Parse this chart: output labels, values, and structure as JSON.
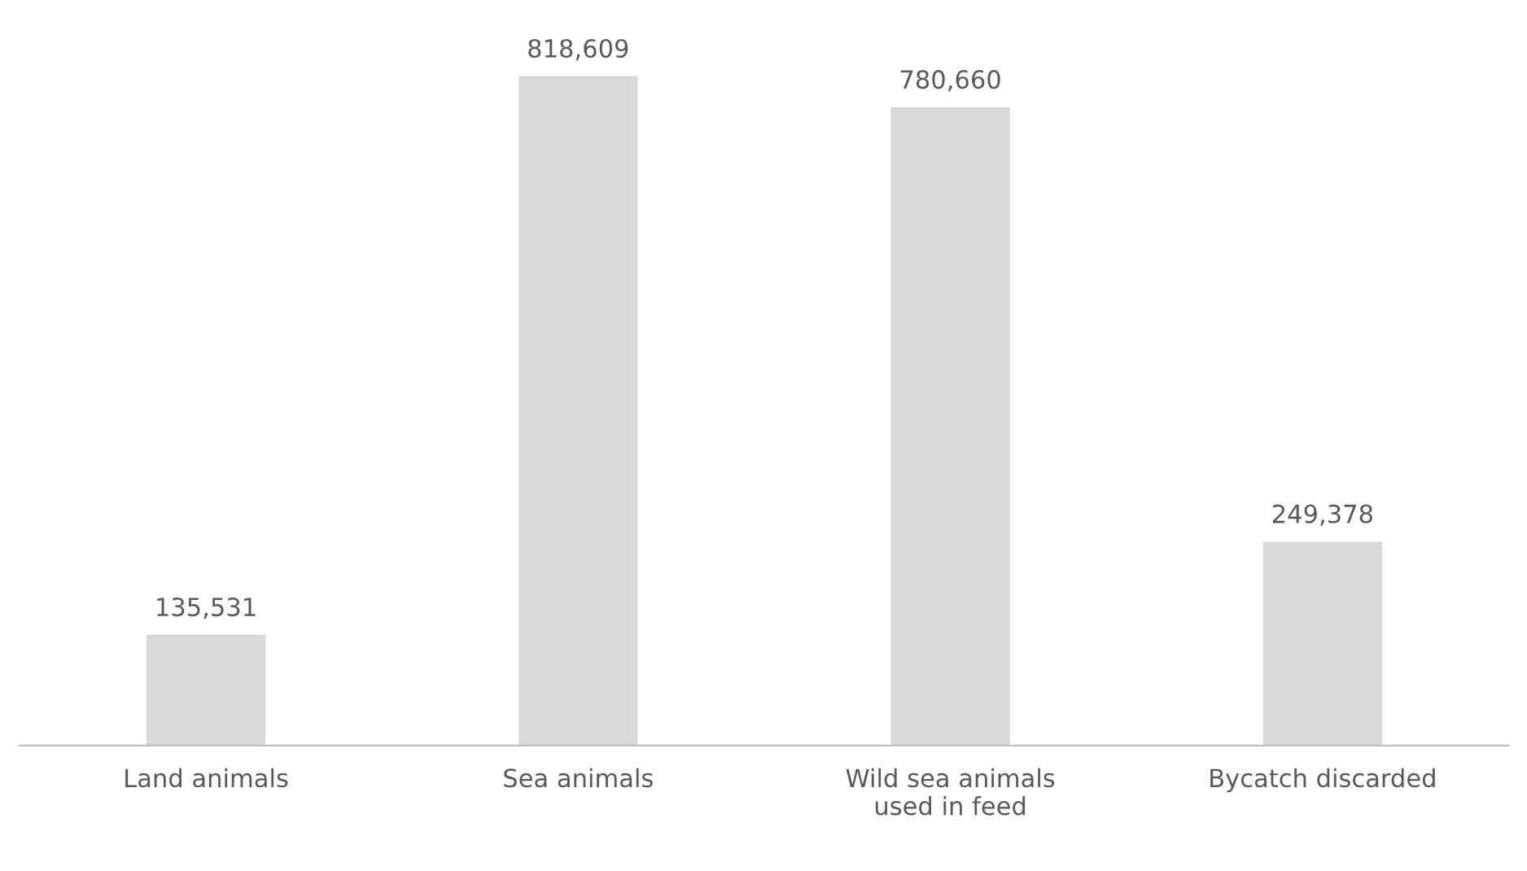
{
  "chart_data": {
    "type": "bar",
    "categories": [
      "Land animals",
      "Sea animals",
      "Wild sea animals\nused in feed",
      "Bycatch discarded"
    ],
    "values": [
      135531,
      818609,
      780660,
      249378
    ],
    "color": "#d9d9d9",
    "value_labels": [
      "135,531",
      "818,609",
      "780,660",
      "249,378"
    ]
  }
}
